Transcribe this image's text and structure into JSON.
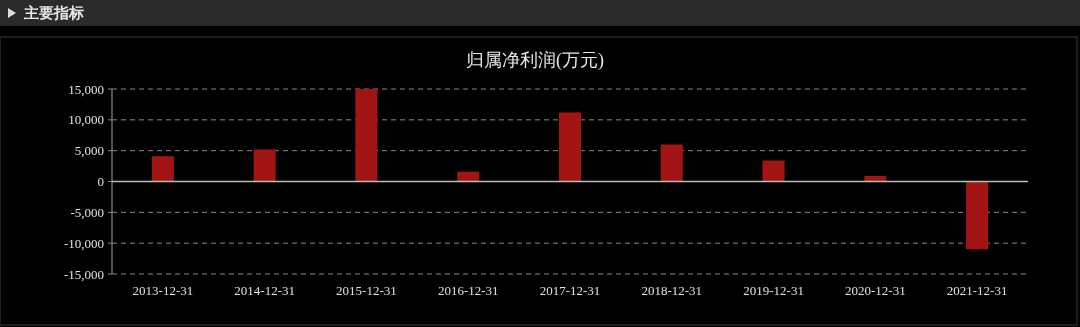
{
  "chart_data": {
    "type": "bar",
    "title": "归属净利润(万元)",
    "annotations": [
      "主要指标"
    ],
    "categories": [
      "2013-12-31",
      "2014-12-31",
      "2015-12-31",
      "2016-12-31",
      "2017-12-31",
      "2018-12-31",
      "2019-12-31",
      "2020-12-31",
      "2021-12-31"
    ],
    "values": [
      4100,
      5200,
      15000,
      1600,
      11200,
      6000,
      3400,
      900,
      -11000
    ],
    "color": "#a31515",
    "ylim": [
      -15000,
      15000
    ],
    "yticks": [
      {
        "value": -15000,
        "label": "-15,000"
      },
      {
        "value": -10000,
        "label": "-10,000"
      },
      {
        "value": -5000,
        "label": "-5,000"
      },
      0,
      {
        "value": 5000,
        "label": "5,000"
      },
      {
        "value": 10000,
        "label": "10,000"
      },
      {
        "value": 15000,
        "label": "15,000"
      }
    ],
    "grid": "y"
  }
}
